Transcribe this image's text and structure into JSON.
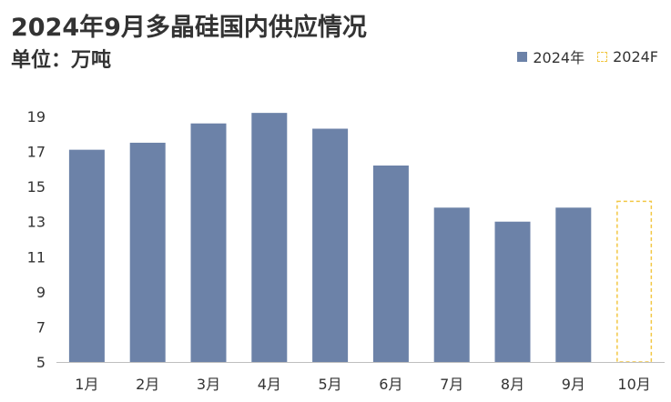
{
  "header": {
    "title": "2024年9月多晶硅国内供应情况",
    "unit": "单位：万吨"
  },
  "colors": {
    "bar": "#6c82a8",
    "forecast_border": "#f2c744",
    "axis": "#bfbfbf",
    "text": "#333333"
  },
  "chart_data": {
    "type": "bar",
    "title": "2024年9月多晶硅国内供应情况",
    "ylabel": "单位：万吨",
    "xlabel": "",
    "categories": [
      "1月",
      "2月",
      "3月",
      "4月",
      "5月",
      "6月",
      "7月",
      "8月",
      "9月",
      "10月"
    ],
    "series": [
      {
        "name": "2024年",
        "style": "solid",
        "values": [
          17.1,
          17.5,
          18.6,
          19.2,
          18.3,
          16.2,
          13.8,
          13.0,
          13.8,
          null
        ]
      },
      {
        "name": "2024F",
        "style": "dashed",
        "values": [
          null,
          null,
          null,
          null,
          null,
          null,
          null,
          null,
          null,
          14.2
        ]
      }
    ],
    "ylim": [
      5,
      19
    ],
    "yticks": [
      "5",
      "7",
      "9",
      "11",
      "13",
      "15",
      "17",
      "19"
    ],
    "legend": "top-right",
    "grid": false
  }
}
